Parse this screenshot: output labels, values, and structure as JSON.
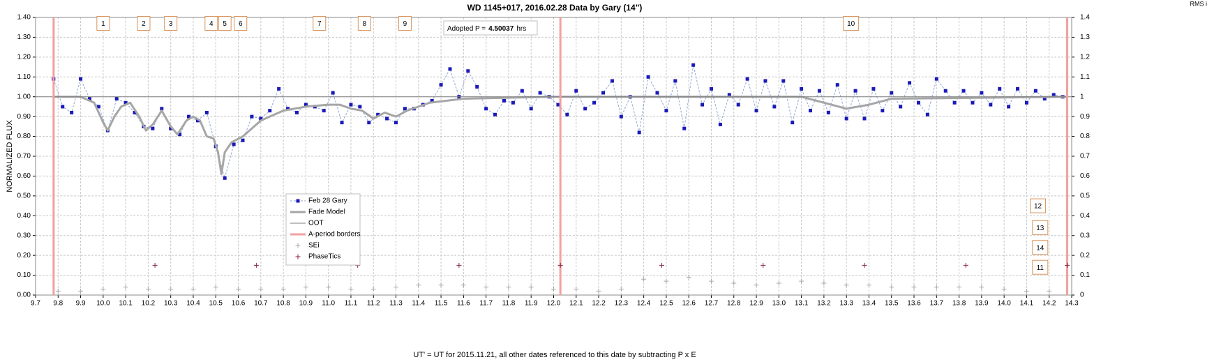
{
  "chart_data": {
    "type": "line",
    "title": "WD 1145+017, 2016.02.28 Data by Gary (14\")",
    "y_label": "NORMALIZED FLUX",
    "y2_label": "RMS i",
    "x_label": "UT' = UT for 2015.11.21, all other dates referenced to this date by subtracting P x E",
    "grid": true,
    "legend_position": "center",
    "xlim": [
      9.7,
      14.3
    ],
    "xticks": [
      9.7,
      9.8,
      9.9,
      {
        "value": 10,
        "label": "10.0"
      },
      10.1,
      10.2,
      10.3,
      10.4,
      10.5,
      10.6,
      10.7,
      10.8,
      10.9,
      {
        "value": 11,
        "label": "11.0"
      },
      11.1,
      11.2,
      11.3,
      11.4,
      11.5,
      11.6,
      11.7,
      11.8,
      11.9,
      {
        "value": 12,
        "label": "12.0"
      },
      12.1,
      12.2,
      12.3,
      12.4,
      12.5,
      12.6,
      12.7,
      12.8,
      12.9,
      {
        "value": 13,
        "label": "13.0"
      },
      13.1,
      13.2,
      13.3,
      13.4,
      13.5,
      13.6,
      13.7,
      13.8,
      13.9,
      {
        "value": 14,
        "label": "14.0"
      },
      14.1,
      14.2,
      14.3
    ],
    "ylim": [
      0,
      1.4
    ],
    "yticks": [
      {
        "value": 0,
        "label": "0.00"
      },
      {
        "value": 0.1,
        "label": "0.10"
      },
      {
        "value": 0.2,
        "label": "0.20"
      },
      {
        "value": 0.3,
        "label": "0.30"
      },
      {
        "value": 0.4,
        "label": "0.40"
      },
      {
        "value": 0.5,
        "label": "0.50"
      },
      {
        "value": 0.6,
        "label": "0.60"
      },
      {
        "value": 0.7,
        "label": "0.70"
      },
      {
        "value": 0.8,
        "label": "0.80"
      },
      {
        "value": 0.9,
        "label": "0.90"
      },
      {
        "value": 1,
        "label": "1.00"
      },
      {
        "value": 1.1,
        "label": "1.10"
      },
      {
        "value": 1.2,
        "label": "1.20"
      },
      {
        "value": 1.3,
        "label": "1.30"
      },
      {
        "value": 1.4,
        "label": "1.40"
      }
    ],
    "y2lim": [
      0,
      1.4
    ],
    "y2ticks": [
      0,
      0.1,
      0.2,
      0.3,
      0.4,
      0.5,
      0.6,
      0.7,
      0.8,
      0.9,
      1,
      1.1,
      1.2,
      1.3,
      1.4
    ],
    "series": [
      {
        "name": "Feb 28 Gary",
        "type": "line-markers",
        "color": "#1a1ab8",
        "line_color": "#8ea6d6",
        "x": [
          9.78,
          9.82,
          9.86,
          9.9,
          9.94,
          9.98,
          10.02,
          10.06,
          10.1,
          10.14,
          10.18,
          10.22,
          10.26,
          10.3,
          10.34,
          10.38,
          10.42,
          10.46,
          10.5,
          10.54,
          10.58,
          10.62,
          10.66,
          10.7,
          10.74,
          10.78,
          10.82,
          10.86,
          10.9,
          10.94,
          10.98,
          11.02,
          11.06,
          11.1,
          11.14,
          11.18,
          11.22,
          11.26,
          11.3,
          11.34,
          11.38,
          11.42,
          11.46,
          11.5,
          11.54,
          11.58,
          11.62,
          11.66,
          11.7,
          11.74,
          11.78,
          11.82,
          11.86,
          11.9,
          11.94,
          11.98,
          12.02,
          12.06,
          12.1,
          12.14,
          12.18,
          12.22,
          12.26,
          12.3,
          12.34,
          12.38,
          12.42,
          12.46,
          12.5,
          12.54,
          12.58,
          12.62,
          12.66,
          12.7,
          12.74,
          12.78,
          12.82,
          12.86,
          12.9,
          12.94,
          12.98,
          13.02,
          13.06,
          13.1,
          13.14,
          13.18,
          13.22,
          13.26,
          13.3,
          13.34,
          13.38,
          13.42,
          13.46,
          13.5,
          13.54,
          13.58,
          13.62,
          13.66,
          13.7,
          13.74,
          13.78,
          13.82,
          13.86,
          13.9,
          13.94,
          13.98,
          14.02,
          14.06,
          14.1,
          14.14,
          14.18,
          14.22,
          14.26
        ],
        "values": [
          1.09,
          0.95,
          0.92,
          1.09,
          0.99,
          0.95,
          0.83,
          0.99,
          0.97,
          0.92,
          0.85,
          0.84,
          0.94,
          0.84,
          0.81,
          0.9,
          0.88,
          0.92,
          0.75,
          0.59,
          0.76,
          0.78,
          0.9,
          0.89,
          0.93,
          1.04,
          0.94,
          0.92,
          0.96,
          0.95,
          0.93,
          1.02,
          0.87,
          0.96,
          0.95,
          0.87,
          0.91,
          0.89,
          0.87,
          0.94,
          0.94,
          0.96,
          0.98,
          1.06,
          1.14,
          1.0,
          1.13,
          1.05,
          0.94,
          0.91,
          0.98,
          0.97,
          1.03,
          0.94,
          1.02,
          1.0,
          0.96,
          0.91,
          1.03,
          0.94,
          0.97,
          1.02,
          1.08,
          0.9,
          1.0,
          0.82,
          1.1,
          1.02,
          0.93,
          1.08,
          0.84,
          1.16,
          0.96,
          1.04,
          0.86,
          1.01,
          0.96,
          1.09,
          0.93,
          1.08,
          0.95,
          1.08,
          0.87,
          1.04,
          0.93,
          1.03,
          0.92,
          1.06,
          0.89,
          1.03,
          0.89,
          1.04,
          0.93,
          1.02,
          0.95,
          1.07,
          0.97,
          0.91,
          1.09,
          1.03,
          0.97,
          1.03,
          0.97,
          1.02,
          0.96,
          1.04,
          0.95,
          1.04,
          0.97,
          1.03,
          0.99,
          1.01,
          1.0
        ]
      },
      {
        "name": "Fade Model",
        "type": "line",
        "color": "#a6a6a6",
        "x": [
          9.78,
          9.9,
          9.96,
          10.0,
          10.02,
          10.05,
          10.08,
          10.12,
          10.16,
          10.19,
          10.22,
          10.26,
          10.3,
          10.33,
          10.37,
          10.4,
          10.43,
          10.46,
          10.49,
          10.51,
          10.525,
          10.54,
          10.57,
          10.62,
          10.7,
          10.8,
          10.9,
          11.0,
          11.05,
          11.1,
          11.15,
          11.2,
          11.25,
          11.3,
          11.35,
          11.45,
          11.6,
          12.0,
          12.5,
          13.1,
          13.2,
          13.3,
          13.4,
          13.5,
          14.28
        ],
        "values": [
          1.0,
          1.0,
          0.97,
          0.87,
          0.83,
          0.9,
          0.95,
          0.97,
          0.9,
          0.83,
          0.86,
          0.93,
          0.85,
          0.81,
          0.88,
          0.9,
          0.88,
          0.8,
          0.79,
          0.72,
          0.61,
          0.72,
          0.77,
          0.8,
          0.88,
          0.93,
          0.95,
          0.96,
          0.96,
          0.94,
          0.93,
          0.89,
          0.92,
          0.9,
          0.93,
          0.97,
          0.99,
          1.0,
          1.0,
          1.0,
          0.97,
          0.94,
          0.96,
          0.99,
          1.0
        ]
      },
      {
        "name": "OOT",
        "type": "line",
        "color": "#7f7f7f",
        "x": [
          9.7,
          14.3
        ],
        "values": [
          1,
          1
        ]
      },
      {
        "name": "A-period borders",
        "type": "vline",
        "color": "#f2a0a0",
        "x": [
          9.78,
          12.03,
          14.28
        ]
      },
      {
        "name": "SEi",
        "type": "markers",
        "axis": "y2",
        "color": "#a9a9a9",
        "x": [
          9.8,
          9.9,
          10.0,
          10.1,
          10.2,
          10.3,
          10.4,
          10.5,
          10.6,
          10.7,
          10.8,
          10.9,
          11.0,
          11.1,
          11.2,
          11.3,
          11.4,
          11.5,
          11.6,
          11.7,
          11.8,
          11.9,
          12.0,
          12.1,
          12.2,
          12.3,
          12.4,
          12.5,
          12.6,
          12.7,
          12.8,
          12.9,
          13.0,
          13.1,
          13.2,
          13.3,
          13.4,
          13.5,
          13.6,
          13.7,
          13.8,
          13.9,
          14.0,
          14.1,
          14.2
        ],
        "values": [
          0.02,
          0.02,
          0.03,
          0.04,
          0.03,
          0.03,
          0.03,
          0.04,
          0.03,
          0.03,
          0.03,
          0.04,
          0.04,
          0.03,
          0.03,
          0.04,
          0.05,
          0.05,
          0.05,
          0.04,
          0.04,
          0.04,
          0.03,
          0.03,
          0.02,
          0.03,
          0.08,
          0.07,
          0.09,
          0.07,
          0.06,
          0.05,
          0.06,
          0.07,
          0.06,
          0.05,
          0.05,
          0.04,
          0.04,
          0.04,
          0.04,
          0.04,
          0.03,
          0.02,
          0.02
        ]
      },
      {
        "name": "PhaseTics",
        "type": "markers",
        "color": "#8b2346",
        "x": [
          10.23,
          10.68,
          11.13,
          11.58,
          12.03,
          12.48,
          12.93,
          13.38,
          13.83,
          14.28
        ],
        "values": [
          0.15,
          0.15,
          0.15,
          0.15,
          0.15,
          0.15,
          0.15,
          0.15,
          0.15,
          0.15
        ]
      }
    ],
    "annotations": [
      {
        "text": "1",
        "x": 10.0,
        "y": 1.37
      },
      {
        "text": "2",
        "x": 10.18,
        "y": 1.37
      },
      {
        "text": "3",
        "x": 10.3,
        "y": 1.37
      },
      {
        "text": "4",
        "x": 10.48,
        "y": 1.37
      },
      {
        "text": "5",
        "x": 10.54,
        "y": 1.37
      },
      {
        "text": "6",
        "x": 10.61,
        "y": 1.37
      },
      {
        "text": "7",
        "x": 10.96,
        "y": 1.37
      },
      {
        "text": "8",
        "x": 11.16,
        "y": 1.37
      },
      {
        "text": "9",
        "x": 11.34,
        "y": 1.37
      },
      {
        "text": "10",
        "x": 13.32,
        "y": 1.37
      },
      {
        "text": "12",
        "x": 14.15,
        "y": 0.45
      },
      {
        "text": "13",
        "x": 14.16,
        "y": 0.34
      },
      {
        "text": "14",
        "x": 14.16,
        "y": 0.24
      },
      {
        "text": "11",
        "x": 14.16,
        "y": 0.14
      }
    ],
    "period_note": {
      "label": "Adopted P =",
      "value": "4.50037",
      "unit": "hrs"
    }
  }
}
